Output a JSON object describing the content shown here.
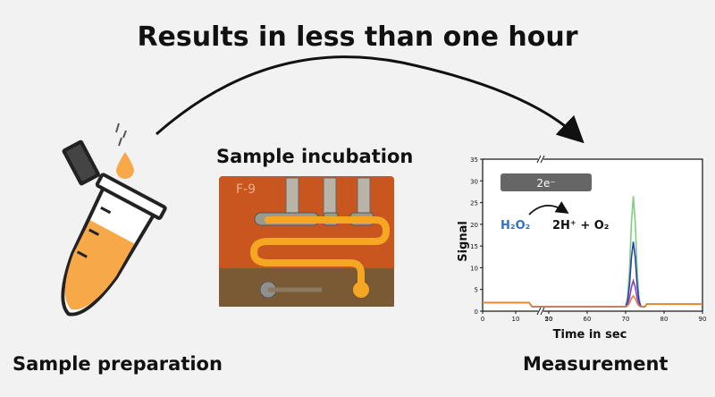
{
  "title": "Results in less than one hour",
  "labels": {
    "preparation": "Sample preparation",
    "incubation": "Sample incubation",
    "measurement": "Measurement"
  },
  "chip": {
    "id": "F-9"
  },
  "reaction": {
    "electrons": "2e⁻",
    "reactant": "H₂O₂",
    "products": "2H⁺ + O₂"
  },
  "colors": {
    "reactant": "#2f6fd0",
    "tube_fill": "#f7a94a",
    "chip_bg": "#c9561e",
    "channel": "#f5a623"
  },
  "chart_data": {
    "type": "line",
    "xlabel": "Time in sec",
    "ylabel": "Signal",
    "xlim": [
      0,
      90
    ],
    "ylim": [
      0,
      35
    ],
    "x_ticks_left": [
      0,
      10,
      20
    ],
    "x_ticks_right": [
      50,
      60,
      70,
      80,
      90
    ],
    "y_ticks": [
      0,
      5,
      10,
      15,
      20,
      25,
      30,
      35
    ],
    "axis_break": "between 20 and 50",
    "series": [
      {
        "color": "#e0863a",
        "peak": 3.5
      },
      {
        "color": "#8e3fbf",
        "peak": 7
      },
      {
        "color": "#2a3fb0",
        "peak": 16
      },
      {
        "color": "#7ed07e",
        "peak": 26.5
      }
    ],
    "baseline_before": 2,
    "baseline_after": 1,
    "drop_time": 15,
    "peak_time": 72
  }
}
